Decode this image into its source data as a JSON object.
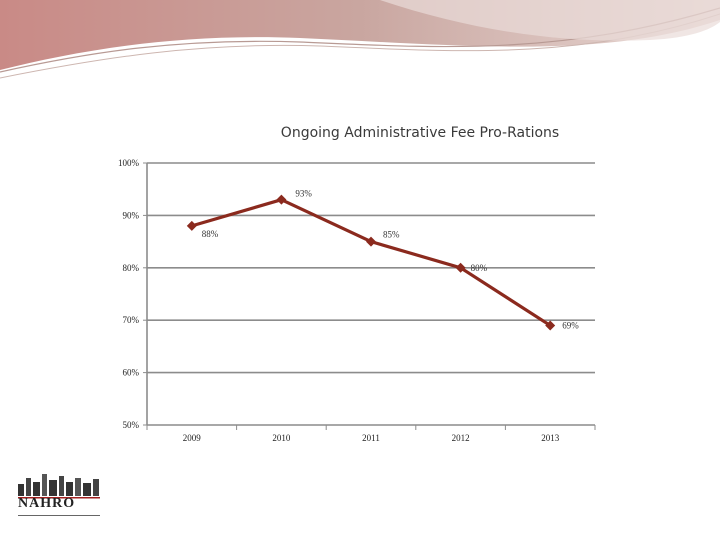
{
  "slide": {
    "logo_text": "NAHRO"
  },
  "chart_data": {
    "type": "line",
    "title": "Ongoing Administrative Fee Pro-Rations",
    "categories": [
      "2009",
      "2010",
      "2011",
      "2012",
      "2013"
    ],
    "series": [
      {
        "values": [
          88,
          93,
          85,
          80,
          69
        ],
        "labels": [
          "88%",
          "93%",
          "85%",
          "80%",
          "69%"
        ],
        "color": "#8b2a1e"
      }
    ],
    "ylim": [
      50,
      100
    ],
    "yticks": [
      100,
      90,
      80,
      70,
      60,
      50
    ],
    "ytick_labels": [
      "100%",
      "90%",
      "80%",
      "70%",
      "60%",
      "50%"
    ],
    "grid": true,
    "legend": "none"
  }
}
